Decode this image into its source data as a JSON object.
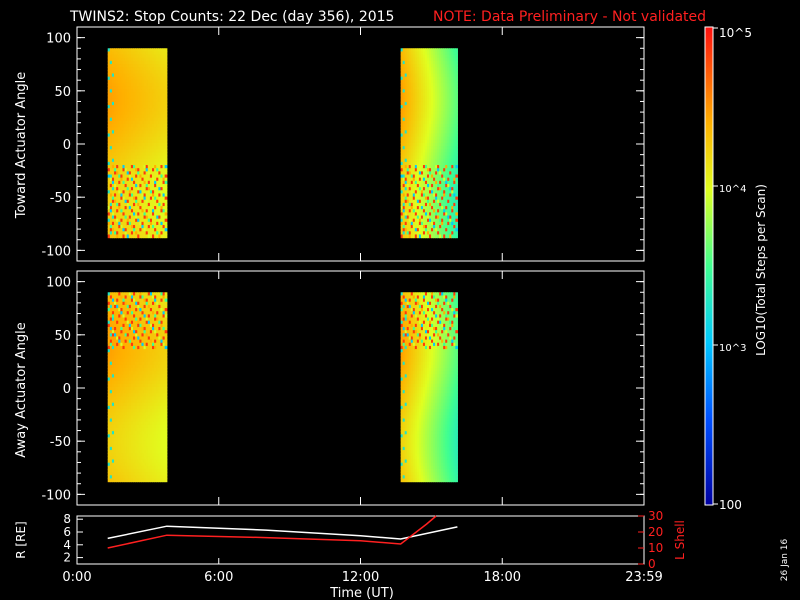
{
  "title": {
    "main": "TWINS2: Stop Counts: 22 Dec (day 356), 2015",
    "note": "NOTE: Data Preliminary - Not validated",
    "note_color": "#ff2020"
  },
  "side_date": "26 Jan 16",
  "colorbar": {
    "label": "LOG10(Total Steps per Scan)",
    "ticks": [
      "10^5",
      "10^4",
      "10^3",
      "100"
    ],
    "min": 100,
    "max": 100000,
    "scale": "log"
  },
  "chart_data": [
    {
      "type": "heatmap",
      "panel": "toward",
      "ylabel": "Toward Actuator Angle",
      "ylim": [
        -110,
        110
      ],
      "yticks": [
        100,
        50,
        0,
        -50,
        -100
      ],
      "xlim": [
        0,
        24
      ],
      "data_blocks": [
        {
          "t_start": 1.3,
          "t_end": 3.8,
          "angle_min": -88,
          "angle_max": 90
        },
        {
          "t_start": 13.7,
          "t_end": 16.1,
          "angle_min": -88,
          "angle_max": 90
        }
      ]
    },
    {
      "type": "heatmap",
      "panel": "away",
      "ylabel": "Away Actuator Angle",
      "ylim": [
        -110,
        110
      ],
      "yticks": [
        100,
        50,
        0,
        -50,
        -100
      ],
      "xlim": [
        0,
        24
      ],
      "data_blocks": [
        {
          "t_start": 1.3,
          "t_end": 3.8,
          "angle_min": -88,
          "angle_max": 90
        },
        {
          "t_start": 13.7,
          "t_end": 16.1,
          "angle_min": -88,
          "angle_max": 90
        }
      ]
    },
    {
      "type": "line",
      "panel": "orbit",
      "xlabel": "Time (UT)",
      "xticks": [
        "0:00",
        "6:00",
        "12:00",
        "18:00",
        "23:59"
      ],
      "xlim": [
        0,
        24
      ],
      "ylabel": "R [RE]",
      "ylim": [
        1,
        8.5
      ],
      "yticks": [
        2,
        4,
        6,
        8
      ],
      "y2label": "L Shell",
      "y2lim": [
        0,
        30
      ],
      "y2ticks": [
        0,
        10,
        20,
        30
      ],
      "series": [
        {
          "axis": "left",
          "color": "#ffffff",
          "x": [
            1.3,
            3.8,
            8.0,
            12.0,
            13.7,
            16.1
          ],
          "y": [
            5.0,
            6.9,
            6.3,
            5.4,
            4.9,
            6.8
          ]
        },
        {
          "axis": "right",
          "color": "#ff2020",
          "x": [
            1.3,
            3.8,
            8.0,
            12.0,
            13.7,
            14.8,
            15.2
          ],
          "y": [
            10,
            18,
            16.5,
            14.5,
            12.5,
            25,
            31
          ]
        }
      ]
    }
  ]
}
